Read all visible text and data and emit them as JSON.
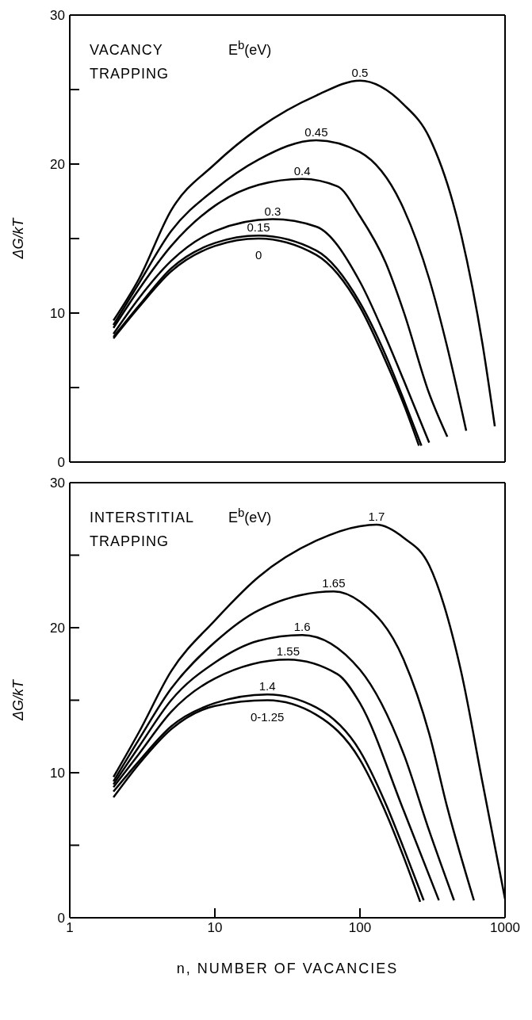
{
  "chart_data": [
    {
      "type": "line",
      "ylabel": "ΔG/kT",
      "legend_title": "E$^{b}$(eV)",
      "annotations": [
        "VACANCY TRAPPING"
      ],
      "log": "x",
      "xlim": [
        1,
        1000
      ],
      "xticks": [
        1,
        10,
        100,
        1000
      ],
      "ylim": [
        0,
        30
      ],
      "yticks": [
        0,
        {
          "value": 5,
          "label": null
        },
        10,
        {
          "value": 15,
          "label": null
        },
        20,
        {
          "value": 25,
          "label": null
        },
        30
      ],
      "tick_labels": "y",
      "marker": "none",
      "line_style": "solid",
      "series": [
        {
          "name": "0.5",
          "color": "#000000",
          "x": [
            2,
            3,
            5,
            10,
            20,
            50,
            100,
            200,
            300,
            500,
            700,
            850
          ],
          "values": [
            9.5,
            12.3,
            16.9,
            20,
            22.4,
            24.6,
            25.6,
            24,
            21.8,
            15.2,
            7.9,
            2.4
          ]
        },
        {
          "name": "0.45",
          "color": "#000000",
          "x": [
            2,
            3,
            5,
            10,
            20,
            50,
            100,
            200,
            300,
            400,
            540
          ],
          "values": [
            9.2,
            12,
            15.5,
            18.3,
            20.3,
            21.6,
            20.8,
            17,
            12.3,
            7.7,
            2.1
          ]
        },
        {
          "name": "0.4",
          "color": "#000000",
          "x": [
            2,
            3,
            5,
            10,
            20,
            40,
            70,
            100,
            150,
            200,
            300,
            400
          ],
          "values": [
            9,
            11.6,
            14.5,
            17.2,
            18.6,
            19,
            18.5,
            16.5,
            13.4,
            10.1,
            4.6,
            1.7
          ]
        },
        {
          "name": "0.3",
          "color": "#000000",
          "x": [
            2,
            3,
            5,
            10,
            25,
            50,
            100,
            150,
            200,
            300
          ],
          "values": [
            8.6,
            11,
            13.5,
            15.5,
            16.3,
            15.8,
            12.1,
            8.4,
            5.5,
            1.3
          ]
        },
        {
          "name": "0.15",
          "color": "#000000",
          "x": [
            2,
            3,
            5,
            10,
            20,
            50,
            100,
            150,
            200,
            265
          ],
          "values": [
            8.4,
            10.5,
            13,
            14.7,
            15.2,
            14.2,
            10.7,
            7.2,
            4.2,
            1.1
          ]
        },
        {
          "name": "0",
          "color": "#000000",
          "x": [
            2,
            3,
            5,
            10,
            20,
            50,
            100,
            150,
            200,
            255
          ],
          "values": [
            8.3,
            10.4,
            12.8,
            14.5,
            15,
            13.9,
            10.4,
            6.8,
            3.9,
            1.1
          ]
        }
      ]
    },
    {
      "type": "line",
      "xlabel": "n, NUMBER OF VACANCIES",
      "ylabel": "ΔG/kT",
      "legend_title": "E$^{b}$(eV)",
      "annotations": [
        "INTERSTITIAL TRAPPING"
      ],
      "log": "x",
      "xlim": [
        1,
        1000
      ],
      "xticks": [
        1,
        10,
        100,
        1000
      ],
      "ylim": [
        0,
        30
      ],
      "yticks": [
        0,
        {
          "value": 5,
          "label": null
        },
        10,
        {
          "value": 15,
          "label": null
        },
        20,
        {
          "value": 25,
          "label": null
        },
        30
      ],
      "marker": "none",
      "line_style": "solid",
      "series": [
        {
          "name": "1.7",
          "color": "#000000",
          "x": [
            2,
            3,
            5,
            10,
            20,
            50,
            100,
            130,
            200,
            300,
            500,
            700,
            1000
          ],
          "values": [
            9.7,
            12.8,
            17,
            20.5,
            23.5,
            26,
            27,
            27.1,
            26.2,
            24.3,
            16.9,
            9.3,
            1.3
          ]
        },
        {
          "name": "1.65",
          "color": "#000000",
          "x": [
            2,
            3,
            5,
            10,
            20,
            66,
            100,
            200,
            300,
            400,
            610
          ],
          "values": [
            9.4,
            12.3,
            15.8,
            19,
            21.2,
            22.5,
            21.8,
            17.8,
            12.7,
            7.6,
            1.2
          ]
        },
        {
          "name": "1.6",
          "color": "#000000",
          "x": [
            2,
            3,
            5,
            10,
            20,
            40,
            100,
            200,
            300,
            445
          ],
          "values": [
            9.2,
            11.8,
            15,
            17.6,
            19.1,
            19.5,
            17.1,
            11.3,
            6,
            1.2
          ]
        },
        {
          "name": "1.55",
          "color": "#000000",
          "x": [
            2,
            3,
            5,
            10,
            32,
            70,
            100,
            200,
            350
          ],
          "values": [
            9,
            11.3,
            14.2,
            16.5,
            17.8,
            16.8,
            14.8,
            7.4,
            1.2
          ]
        },
        {
          "name": "1.4",
          "color": "#000000",
          "x": [
            2,
            3,
            5,
            10,
            23,
            50,
            100,
            150,
            200,
            275
          ],
          "values": [
            8.7,
            10.8,
            13.2,
            14.8,
            15.4,
            14.5,
            11.5,
            7.9,
            4.8,
            1.2
          ]
        },
        {
          "name": "0-1.25",
          "color": "#000000",
          "x": [
            2,
            3,
            5,
            10,
            23,
            50,
            100,
            150,
            200,
            260
          ],
          "values": [
            8.3,
            10.6,
            13,
            14.6,
            15,
            14,
            10.9,
            7.3,
            4.2,
            1.1
          ]
        }
      ]
    }
  ]
}
